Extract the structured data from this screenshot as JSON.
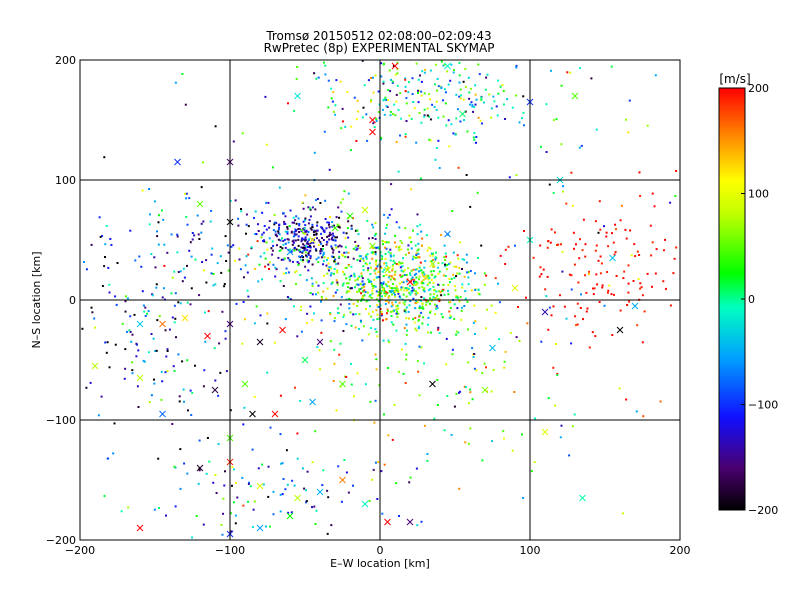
{
  "chart_data": {
    "type": "scatter",
    "title": "Tromsø 20150512 02:08:00–02:09:43",
    "subtitle": "RwPretec (8p) EXPERIMENTAL SKYMAP",
    "xlabel": "E–W location [km]",
    "ylabel": "N–S location [km]",
    "xlim": [
      -200,
      200
    ],
    "ylim": [
      -200,
      200
    ],
    "xticks": [
      -200,
      -100,
      0,
      100,
      200
    ],
    "yticks": [
      -200,
      -100,
      0,
      100,
      200
    ],
    "grid": true,
    "colorbar": {
      "label": "[m/s]",
      "min": -200,
      "max": 200,
      "ticks": [
        -200,
        -100,
        0,
        100,
        200
      ],
      "colormap": "rainbow"
    },
    "clusters": [
      {
        "cx": 15,
        "cy": 12,
        "sx": 25,
        "sy": 20,
        "n": 650,
        "vmean": 40,
        "vsd": 70
      },
      {
        "cx": -48,
        "cy": 52,
        "sx": 14,
        "sy": 12,
        "n": 260,
        "vmean": -140,
        "vsd": 40
      },
      {
        "cx": -40,
        "cy": 40,
        "sx": 40,
        "sy": 25,
        "n": 200,
        "vmean": -40,
        "vsd": 90
      },
      {
        "cx": 30,
        "cy": 170,
        "sx": 40,
        "sy": 20,
        "n": 260,
        "vmean": -20,
        "vsd": 90
      },
      {
        "cx": 145,
        "cy": 25,
        "sx": 30,
        "sy": 30,
        "n": 140,
        "vmean": 195,
        "vsd": 8
      },
      {
        "cx": -155,
        "cy": -35,
        "sx": 30,
        "sy": 35,
        "n": 120,
        "vmean": -140,
        "vsd": 90
      },
      {
        "cx": -130,
        "cy": 40,
        "sx": 40,
        "sy": 30,
        "n": 90,
        "vmean": -120,
        "vsd": 70
      },
      {
        "cx": -70,
        "cy": -160,
        "sx": 45,
        "sy": 25,
        "n": 110,
        "vmean": -80,
        "vsd": 90
      },
      {
        "cx": 40,
        "cy": -60,
        "sx": 40,
        "sy": 30,
        "n": 80,
        "vmean": 60,
        "vsd": 90
      },
      {
        "cx": 0,
        "cy": 0,
        "sx": 110,
        "sy": 110,
        "n": 300,
        "vmean": 0,
        "vsd": 120
      }
    ],
    "cross_markers": [
      [
        -135,
        115
      ],
      [
        -100,
        115
      ],
      [
        -120,
        80
      ],
      [
        -100,
        65
      ],
      [
        -60,
        40
      ],
      [
        -45,
        50
      ],
      [
        -30,
        60
      ],
      [
        -20,
        70
      ],
      [
        -10,
        75
      ],
      [
        -5,
        45
      ],
      [
        5,
        25
      ],
      [
        20,
        15
      ],
      [
        35,
        30
      ],
      [
        45,
        55
      ],
      [
        -55,
        170
      ],
      [
        -5,
        150
      ],
      [
        10,
        195
      ],
      [
        45,
        195
      ],
      [
        130,
        170
      ],
      [
        120,
        100
      ],
      [
        100,
        50
      ],
      [
        90,
        10
      ],
      [
        75,
        -40
      ],
      [
        110,
        -10
      ],
      [
        155,
        35
      ],
      [
        160,
        -25
      ],
      [
        170,
        -5
      ],
      [
        -160,
        -20
      ],
      [
        -145,
        -20
      ],
      [
        -130,
        -15
      ],
      [
        -115,
        -30
      ],
      [
        -100,
        -20
      ],
      [
        -80,
        -35
      ],
      [
        -65,
        -25
      ],
      [
        -50,
        -50
      ],
      [
        -40,
        -35
      ],
      [
        -110,
        -75
      ],
      [
        -90,
        -70
      ],
      [
        -70,
        -95
      ],
      [
        -45,
        -85
      ],
      [
        -25,
        -70
      ],
      [
        -160,
        -65
      ],
      [
        -190,
        -55
      ],
      [
        -145,
        -95
      ],
      [
        -100,
        -115
      ],
      [
        -85,
        -95
      ],
      [
        -120,
        -140
      ],
      [
        -100,
        -135
      ],
      [
        -80,
        -155
      ],
      [
        -55,
        -165
      ],
      [
        -40,
        -160
      ],
      [
        -25,
        -150
      ],
      [
        -10,
        -170
      ],
      [
        5,
        -185
      ],
      [
        20,
        -185
      ],
      [
        -80,
        -190
      ],
      [
        -100,
        -195
      ],
      [
        -60,
        -180
      ],
      [
        -160,
        -190
      ],
      [
        35,
        -70
      ],
      [
        70,
        -75
      ],
      [
        110,
        -110
      ],
      [
        135,
        -165
      ],
      [
        100,
        165
      ],
      [
        55,
        155
      ],
      [
        -5,
        140
      ]
    ]
  }
}
